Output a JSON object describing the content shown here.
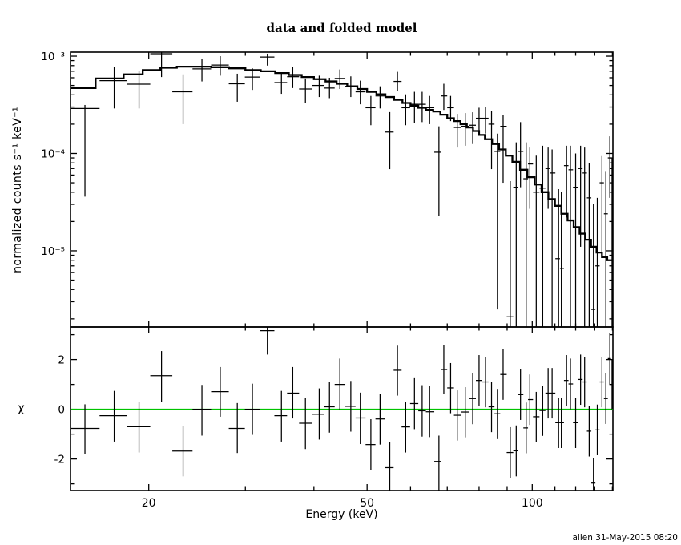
{
  "title": "data and folded model",
  "timestamp": "allen 31-May-2015 08:20",
  "chart_data": {
    "type": "scatter",
    "title": "data and folded model",
    "xlabel": "Energy (keV)",
    "xscale": "log",
    "xlim": [
      14.4,
      140.3
    ],
    "xticks": {
      "major": [
        20,
        50,
        100
      ],
      "major_labels": [
        "20",
        "50",
        "100"
      ],
      "minor": [
        30,
        40,
        60,
        70,
        80,
        90,
        110,
        120,
        130,
        140
      ]
    },
    "legend": "none",
    "grid": "off",
    "colors": {
      "foreground": "#000000",
      "background": "#ffffff",
      "zero_line": "#00c300"
    },
    "panels": [
      {
        "name": "spectrum",
        "ylabel": "normalized counts s⁻¹ keV⁻¹",
        "yscale": "log",
        "ylim": [
          1.65e-06,
          0.0011
        ],
        "yticks": {
          "major": [
            0.001,
            0.0001,
            1e-05
          ],
          "major_labels": [
            "10⁻³",
            "10⁻⁴",
            "10⁻⁵"
          ]
        },
        "model_step": {
          "edges": [
            14.4,
            16,
            18,
            19.5,
            21,
            22.5,
            26,
            28,
            30,
            32,
            34,
            36,
            38,
            40,
            42,
            44,
            46,
            48,
            50,
            52,
            54,
            56,
            58,
            60,
            62,
            64,
            66,
            68,
            70,
            72,
            74,
            76,
            78,
            80,
            82,
            84.5,
            87,
            89.5,
            92,
            95,
            98,
            101,
            104,
            107,
            110,
            113,
            116,
            119,
            122,
            125,
            128,
            131,
            134,
            137,
            140.3
          ],
          "values": [
            0.00047,
            0.00059,
            0.00065,
            0.00072,
            0.00076,
            0.00078,
            0.00077,
            0.00075,
            0.00072,
            0.0007,
            0.00067,
            0.00064,
            0.00061,
            0.00058,
            0.00055,
            0.00052,
            0.00049,
            0.00046,
            0.00043,
            0.000405,
            0.00038,
            0.000355,
            0.00033,
            0.00031,
            0.000295,
            0.00028,
            0.00027,
            0.00025,
            0.00023,
            0.000215,
            0.0002,
            0.000185,
            0.00017,
            0.000155,
            0.00014,
            0.000125,
            0.00011,
            9.5e-05,
            8.2e-05,
            6.8e-05,
            5.7e-05,
            4.8e-05,
            4e-05,
            3.4e-05,
            2.9e-05,
            2.4e-05,
            2.05e-05,
            1.75e-05,
            1.5e-05,
            1.3e-05,
            1.1e-05,
            9.6e-06,
            8.6e-06,
            8e-06
          ]
        },
        "points": [
          [
            15.3,
            0.00029,
            3.6e-05,
            0.000315
          ],
          [
            17.3,
            0.00056,
            0.00029,
            0.00078
          ],
          [
            19.2,
            0.000515,
            0.00029,
            0.000705
          ],
          [
            21.1,
            0.00106,
            0.00061,
            0.00109
          ],
          [
            23.1,
            0.00043,
            0.0002,
            0.00065
          ],
          [
            25.0,
            0.00074,
            0.00055,
            0.00094
          ],
          [
            27.0,
            0.00081,
            0.00063,
            0.001
          ],
          [
            29.0,
            0.00052,
            0.00034,
            0.00066
          ],
          [
            30.9,
            0.00061,
            0.00045,
            0.00075
          ],
          [
            32.9,
            0.00098,
            0.0008,
            0.00106
          ],
          [
            34.9,
            0.000535,
            0.00041,
            0.00067
          ],
          [
            36.6,
            0.000615,
            0.00047,
            0.00078
          ],
          [
            38.6,
            0.00046,
            0.00033,
            0.00059
          ],
          [
            40.9,
            0.0005,
            0.00038,
            0.00063
          ],
          [
            42.7,
            0.00047,
            0.00037,
            0.0006
          ],
          [
            44.6,
            0.00059,
            0.00046,
            0.00073
          ],
          [
            46.7,
            0.00049,
            0.00038,
            0.00062
          ],
          [
            48.6,
            0.00043,
            0.00032,
            0.00056
          ],
          [
            50.8,
            0.000295,
            0.000195,
            0.00039
          ],
          [
            52.8,
            0.00039,
            0.00029,
            0.00049
          ],
          [
            55.0,
            0.000166,
            6.9e-05,
            0.000266
          ],
          [
            56.8,
            0.00055,
            0.00044,
            0.00069
          ],
          [
            58.8,
            0.000295,
            0.000195,
            0.000405
          ],
          [
            61.0,
            0.00032,
            0.000205,
            0.00043
          ],
          [
            63.0,
            0.00032,
            0.00021,
            0.00043
          ],
          [
            65.0,
            0.000295,
            0.0002,
            0.00039
          ],
          [
            67.6,
            0.000103,
            2.3e-05,
            0.00019
          ],
          [
            69.0,
            0.00039,
            0.00028,
            0.00052
          ],
          [
            71.0,
            0.000295,
            0.000215,
            0.00039
          ],
          [
            73.0,
            0.000185,
            0.000115,
            0.000255
          ],
          [
            75.5,
            0.00019,
            0.00012,
            0.00026
          ],
          [
            77.9,
            0.000195,
            0.000125,
            0.000265
          ],
          [
            80.0,
            0.00023,
            0.000155,
            0.000295
          ],
          [
            82.2,
            0.00023,
            0.00016,
            0.0003
          ],
          [
            84.3,
            0.0002,
            6.9e-05,
            0.000275
          ],
          [
            86.4,
            0.000105,
            2.5e-06,
            0.00016
          ],
          [
            88.5,
            0.00019,
            5e-05,
            0.00025
          ],
          [
            91.2,
            2.1e-06,
            1e-06,
            5.2e-05
          ],
          [
            93.5,
            4.5e-05,
            1e-06,
            0.00013
          ],
          [
            95.2,
            0.000105,
            4.5e-05,
            0.00021
          ],
          [
            97.5,
            5.5e-05,
            1e-06,
            0.00013
          ],
          [
            99.0,
            7.8e-05,
            2.7e-05,
            0.000115
          ],
          [
            101.7,
            4e-05,
            1e-06,
            9.5e-05
          ],
          [
            104.5,
            4.4e-05,
            1e-06,
            0.00012
          ],
          [
            106.9,
            7e-05,
            2.7e-05,
            0.000115
          ],
          [
            108.7,
            6.3e-05,
            1e-06,
            0.00011
          ],
          [
            111.7,
            8.3e-06,
            1e-06,
            4.3e-05
          ],
          [
            113.0,
            6.6e-06,
            1e-06,
            4e-05
          ],
          [
            115.5,
            7.5e-05,
            2.2e-05,
            0.00012
          ],
          [
            117.4,
            6.8e-05,
            1e-06,
            0.00012
          ],
          [
            120.0,
            4.5e-05,
            1e-06,
            0.0001
          ],
          [
            122.5,
            7e-05,
            1.1e-05,
            0.00012
          ],
          [
            124.6,
            6.3e-05,
            1e-06,
            0.000115
          ],
          [
            127.0,
            3.5e-05,
            1e-06,
            8e-05
          ],
          [
            129.3,
            2.5e-06,
            1e-06,
            3e-05
          ],
          [
            131.4,
            7e-06,
            1e-06,
            3.5e-05
          ],
          [
            134.0,
            5e-05,
            8.5e-06,
            9.4e-05
          ],
          [
            136.2,
            2.4e-05,
            1e-06,
            6.6e-05
          ],
          [
            138.5,
            9e-05,
            3.5e-05,
            0.00015
          ],
          [
            139.8,
            4e-05,
            1e-06,
            9e-05
          ]
        ]
      },
      {
        "name": "residuals",
        "ylabel": "χ",
        "yscale": "linear",
        "ylim": [
          -3.27,
          3.31
        ],
        "yticks": {
          "major": [
            -2,
            0,
            2
          ],
          "major_labels": [
            "-2",
            "0",
            "2"
          ],
          "minor": [
            -3,
            -1,
            1,
            3
          ]
        },
        "zero_line": {
          "y": 0,
          "color": "#00c300"
        },
        "points": [
          [
            15.3,
            -0.77,
            -1.8,
            0.2
          ],
          [
            17.3,
            -0.26,
            -1.3,
            0.74
          ],
          [
            19.2,
            -0.7,
            -1.74,
            0.3
          ],
          [
            21.1,
            1.35,
            0.28,
            2.34
          ],
          [
            23.1,
            -1.68,
            -2.7,
            -0.67
          ],
          [
            25.0,
            0.0,
            -1.06,
            0.98
          ],
          [
            27.0,
            0.71,
            -0.3,
            1.7
          ],
          [
            29.0,
            -0.77,
            -1.76,
            0.25
          ],
          [
            30.9,
            0.0,
            -1.03,
            1.03
          ],
          [
            32.9,
            3.16,
            2.2,
            3.6
          ],
          [
            34.9,
            -0.26,
            -1.3,
            0.74
          ],
          [
            36.6,
            0.65,
            -0.37,
            1.7
          ],
          [
            38.6,
            -0.56,
            -1.6,
            0.46
          ],
          [
            40.9,
            -0.2,
            -1.22,
            0.84
          ],
          [
            42.7,
            0.1,
            -0.94,
            1.1
          ],
          [
            44.6,
            1.0,
            -0.02,
            2.04
          ],
          [
            46.7,
            0.12,
            -0.9,
            1.14
          ],
          [
            48.6,
            -0.35,
            -1.4,
            0.67
          ],
          [
            50.8,
            -1.42,
            -2.45,
            -0.4
          ],
          [
            52.8,
            -0.39,
            -1.42,
            0.62
          ],
          [
            55.0,
            -2.35,
            -3.6,
            -1.33
          ],
          [
            56.8,
            1.57,
            0.55,
            2.56
          ],
          [
            58.8,
            -0.71,
            -1.74,
            0.3
          ],
          [
            61.0,
            0.23,
            -0.8,
            1.25
          ],
          [
            63.0,
            -0.06,
            -1.1,
            0.97
          ],
          [
            65.0,
            -0.1,
            -1.12,
            0.95
          ],
          [
            67.6,
            -2.1,
            -3.6,
            -1.06
          ],
          [
            69.0,
            1.6,
            0.6,
            2.6
          ],
          [
            71.0,
            0.86,
            -0.16,
            1.86
          ],
          [
            73.0,
            -0.24,
            -1.26,
            0.76
          ],
          [
            75.5,
            -0.11,
            -1.13,
            0.89
          ],
          [
            77.9,
            0.43,
            -0.6,
            1.44
          ],
          [
            80.0,
            1.16,
            0.14,
            2.18
          ],
          [
            82.2,
            1.1,
            0.08,
            2.1
          ],
          [
            84.3,
            0.1,
            -0.92,
            1.1
          ],
          [
            86.4,
            -0.18,
            -1.2,
            0.82
          ],
          [
            88.5,
            1.4,
            0.38,
            2.42
          ],
          [
            91.2,
            -1.74,
            -2.76,
            -0.72
          ],
          [
            93.5,
            -1.67,
            -2.7,
            -0.65
          ],
          [
            95.2,
            0.59,
            -0.43,
            1.6
          ],
          [
            97.5,
            -0.75,
            -1.77,
            0.27
          ],
          [
            99.0,
            0.39,
            -0.63,
            1.4
          ],
          [
            101.7,
            -0.3,
            -1.32,
            0.7
          ],
          [
            104.5,
            -0.05,
            -1.07,
            0.95
          ],
          [
            106.9,
            0.65,
            -0.37,
            1.66
          ],
          [
            108.7,
            0.65,
            -0.37,
            1.66
          ],
          [
            111.7,
            -0.54,
            -1.56,
            0.47
          ],
          [
            113.0,
            -0.54,
            -1.56,
            0.47
          ],
          [
            115.5,
            1.16,
            0.14,
            2.18
          ],
          [
            117.4,
            1.02,
            0.0,
            2.04
          ],
          [
            120.0,
            -0.54,
            -1.56,
            0.47
          ],
          [
            122.5,
            1.2,
            0.18,
            2.2
          ],
          [
            124.6,
            1.1,
            0.08,
            2.1
          ],
          [
            127.0,
            -0.88,
            -1.9,
            0.14
          ],
          [
            129.3,
            -2.97,
            -3.6,
            -1.95
          ],
          [
            131.4,
            -0.83,
            -1.85,
            0.19
          ],
          [
            134.0,
            1.1,
            0.08,
            2.1
          ],
          [
            136.2,
            0.43,
            -0.59,
            1.44
          ],
          [
            138.5,
            2.04,
            1.02,
            3.06
          ],
          [
            139.8,
            1.0,
            0.0,
            2.0
          ]
        ]
      }
    ]
  }
}
